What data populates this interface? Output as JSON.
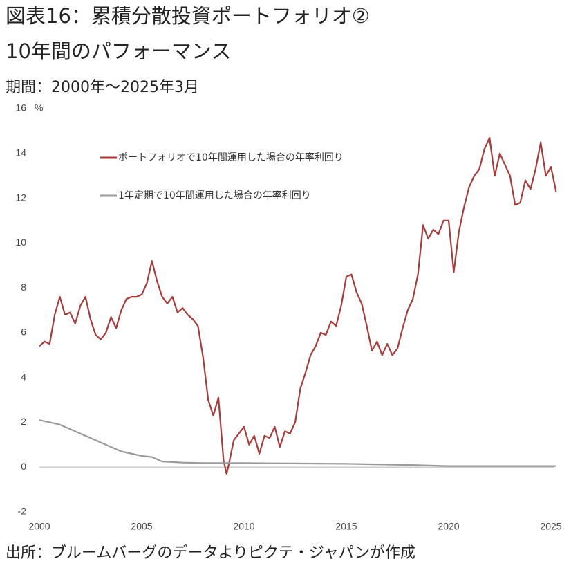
{
  "chart_data": {
    "type": "line",
    "title": "図表16：累積分散投資ポートフォリオ②",
    "subtitle": "10年間のパフォーマンス",
    "period": "期間：2000年～2025年3月",
    "source": "出所：ブルームバーグのデータよりピクテ・ジャパンが作成",
    "ylabel": "%",
    "legend": "upper left",
    "xlim": [
      2000,
      2025
    ],
    "xticks": [
      2000,
      2005,
      2010,
      2015,
      2020,
      2025
    ],
    "ylim": [
      -2,
      16
    ],
    "yticks": [
      -2,
      0,
      2,
      4,
      6,
      8,
      10,
      12,
      14,
      16
    ],
    "series": [
      {
        "name": "ポートフォリオで10年間運用した場合の年率利回り",
        "color": "#a83a3a",
        "x": [
          2000,
          2000.25,
          2000.5,
          2000.75,
          2001,
          2001.25,
          2001.5,
          2001.75,
          2002,
          2002.25,
          2002.5,
          2002.75,
          2003,
          2003.25,
          2003.5,
          2003.75,
          2004,
          2004.25,
          2004.5,
          2004.75,
          2005,
          2005.25,
          2005.5,
          2005.75,
          2006,
          2006.25,
          2006.5,
          2006.75,
          2007,
          2007.25,
          2007.5,
          2007.75,
          2008,
          2008.25,
          2008.5,
          2008.75,
          2009,
          2009.15,
          2009.25,
          2009.5,
          2009.75,
          2010,
          2010.25,
          2010.5,
          2010.75,
          2011,
          2011.25,
          2011.5,
          2011.75,
          2012,
          2012.25,
          2012.5,
          2012.75,
          2013,
          2013.25,
          2013.5,
          2013.75,
          2014,
          2014.25,
          2014.5,
          2014.75,
          2015,
          2015.25,
          2015.5,
          2015.75,
          2016,
          2016.25,
          2016.5,
          2016.75,
          2017,
          2017.25,
          2017.5,
          2017.75,
          2018,
          2018.25,
          2018.5,
          2018.75,
          2019,
          2019.25,
          2019.5,
          2019.75,
          2020,
          2020.25,
          2020.5,
          2020.75,
          2021,
          2021.25,
          2021.5,
          2021.75,
          2022,
          2022.25,
          2022.5,
          2022.75,
          2023,
          2023.25,
          2023.5,
          2023.75,
          2024,
          2024.25,
          2024.5,
          2024.75,
          2025,
          2025.25
        ],
        "values": [
          5.4,
          5.6,
          5.5,
          6.8,
          7.6,
          6.8,
          6.9,
          6.4,
          7.2,
          7.6,
          6.6,
          5.9,
          5.7,
          6.0,
          6.7,
          6.2,
          7.0,
          7.5,
          7.6,
          7.6,
          7.7,
          8.2,
          9.2,
          8.3,
          7.6,
          7.3,
          7.6,
          6.9,
          7.1,
          6.8,
          6.6,
          6.3,
          4.9,
          3.0,
          2.3,
          3.1,
          0.3,
          -0.3,
          0.1,
          1.2,
          1.5,
          1.8,
          1.0,
          1.4,
          0.6,
          1.4,
          1.3,
          1.8,
          0.9,
          1.6,
          1.5,
          2.0,
          3.5,
          4.2,
          5.0,
          5.4,
          6.0,
          5.9,
          6.5,
          6.3,
          7.2,
          8.5,
          8.6,
          7.8,
          7.3,
          6.3,
          5.2,
          5.6,
          5.0,
          5.5,
          5.0,
          5.3,
          6.2,
          7.0,
          7.5,
          8.6,
          10.8,
          10.2,
          10.6,
          10.4,
          11.0,
          11.0,
          8.7,
          10.5,
          11.6,
          12.5,
          13.0,
          13.3,
          14.2,
          14.7,
          13.0,
          14.0,
          13.5,
          13.0,
          11.7,
          11.8,
          12.8,
          12.4,
          13.3,
          14.5,
          13.0,
          13.4,
          12.3
        ]
      },
      {
        "name": "1年定期で10年間運用した場合の年率利回り",
        "color": "#9a9a9a",
        "x": [
          2000,
          2001,
          2002,
          2003,
          2004,
          2005,
          2005.5,
          2006,
          2007,
          2008,
          2010,
          2015,
          2018,
          2020,
          2025.25
        ],
        "values": [
          2.1,
          1.9,
          1.5,
          1.1,
          0.7,
          0.5,
          0.45,
          0.25,
          0.2,
          0.18,
          0.18,
          0.15,
          0.1,
          0.05,
          0.05
        ]
      }
    ]
  }
}
